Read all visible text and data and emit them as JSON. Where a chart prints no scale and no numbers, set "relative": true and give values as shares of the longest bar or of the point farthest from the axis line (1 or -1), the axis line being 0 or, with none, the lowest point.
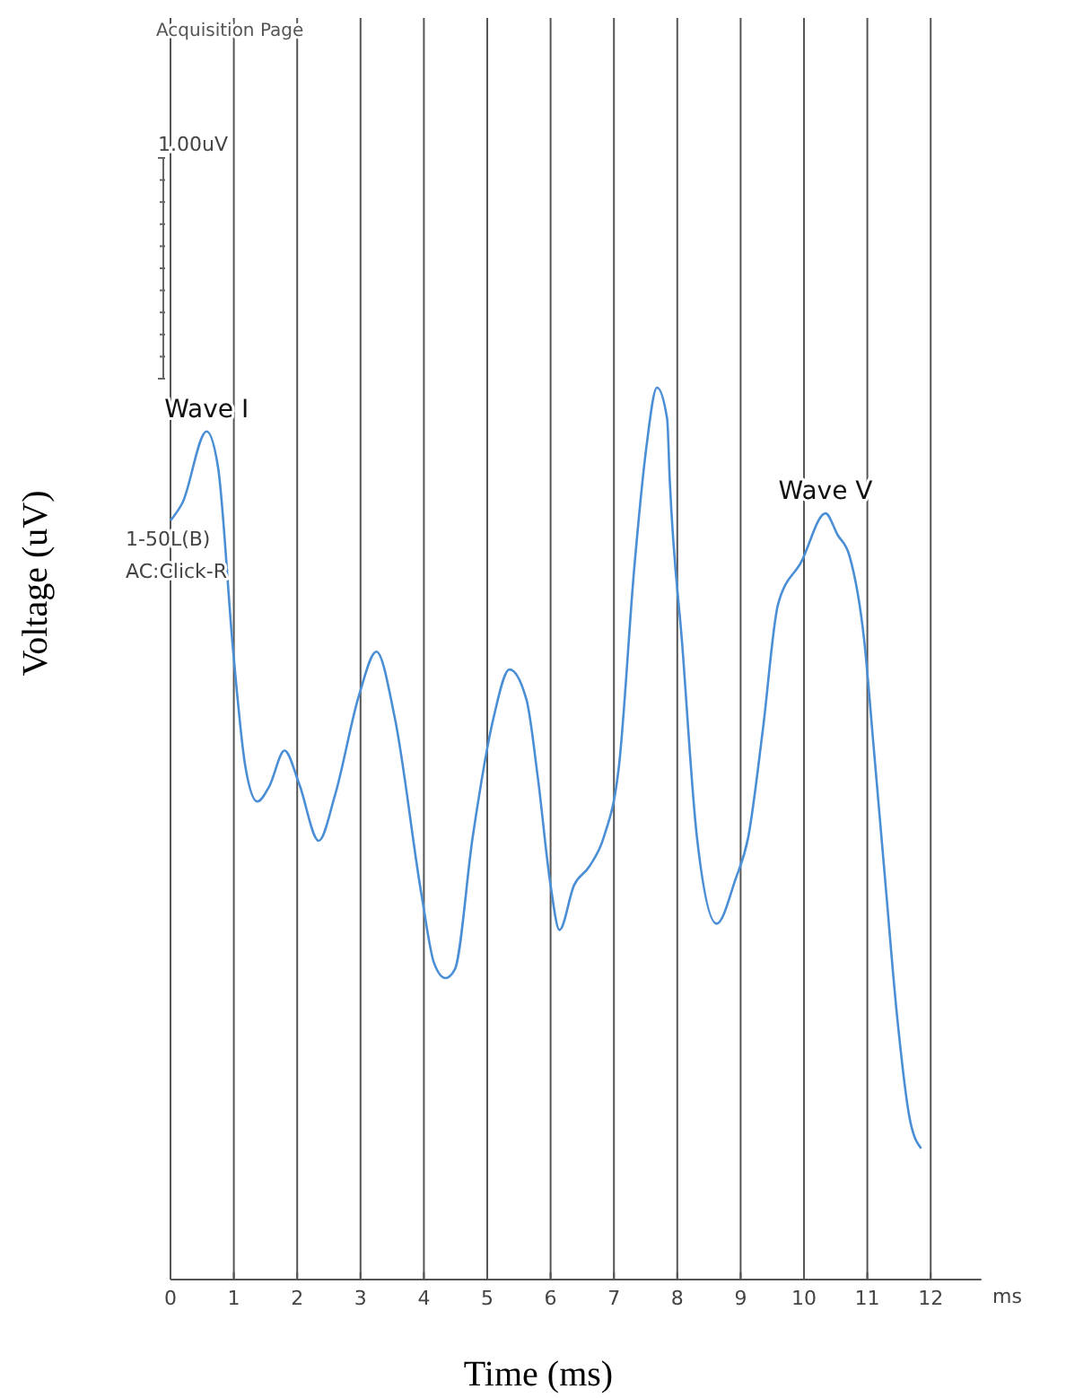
{
  "chart_data": {
    "type": "line",
    "relative": true,
    "xlabel": "Time (ms)",
    "ylabel": "Voltage (uV)",
    "xlim": [
      0,
      12.8
    ],
    "xticks": [
      0,
      1,
      2,
      3,
      4,
      5,
      6,
      7,
      8,
      9,
      10,
      11,
      12
    ],
    "grid": "x",
    "marker": "none",
    "line_style": "solid",
    "series": [
      {
        "color": "#4a8fd6",
        "x": [
          0,
          0.19,
          0.57,
          0.75,
          0.99,
          1.18,
          1.37,
          1.56,
          1.8,
          2.03,
          2.34,
          2.6,
          2.98,
          3.25,
          3.54,
          3.97,
          4.16,
          4.34,
          4.49,
          4.77,
          5.1,
          5.35,
          5.62,
          5.8,
          6.0,
          6.14,
          6.37,
          6.61,
          6.84,
          7.08,
          7.32,
          7.51,
          7.68,
          7.84,
          7.88,
          8.08,
          8.31,
          8.62,
          8.92,
          9.12,
          9.35,
          9.59,
          9.96,
          10.34,
          10.53,
          10.72,
          10.95,
          11.1,
          11.28,
          11.47,
          11.67,
          11.85
        ],
        "values": [
          0.851,
          0.871,
          0.951,
          0.911,
          0.704,
          0.576,
          0.536,
          0.553,
          0.593,
          0.556,
          0.492,
          0.544,
          0.656,
          0.704,
          0.63,
          0.428,
          0.355,
          0.338,
          0.348,
          0.496,
          0.63,
          0.684,
          0.65,
          0.562,
          0.442,
          0.392,
          0.442,
          0.463,
          0.496,
          0.576,
          0.797,
          0.932,
          1,
          0.965,
          0.898,
          0.71,
          0.496,
          0.399,
          0.449,
          0.496,
          0.616,
          0.757,
          0.805,
          0.859,
          0.835,
          0.811,
          0.717,
          0.597,
          0.449,
          0.295,
          0.18,
          0.147
        ]
      }
    ],
    "annotations": [
      "Acquisition Page",
      "1.00uV",
      "1-50L(B)",
      "AC:Click-R",
      "ms",
      {
        "text": "Wave I",
        "x": 0.57,
        "y": 0.951
      },
      {
        "text": "Wave V",
        "x": 10.34,
        "y": 0.859
      }
    ]
  }
}
